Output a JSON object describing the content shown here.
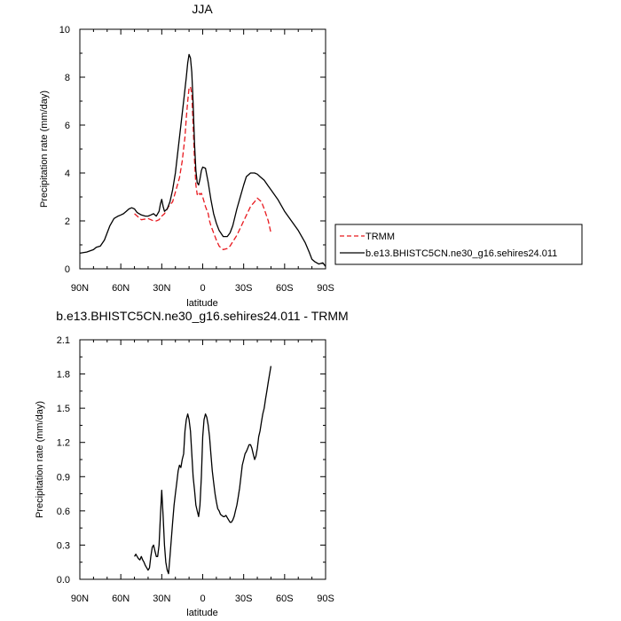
{
  "chart_data": [
    {
      "type": "line",
      "title": "JJA",
      "xlabel": "latitude",
      "ylabel": "Precipitation rate (mm/day)",
      "xlim": [
        90,
        -90
      ],
      "ylim": [
        0,
        10
      ],
      "x_ticks": [
        90,
        60,
        30,
        0,
        -30,
        -60,
        -90
      ],
      "x_tick_labels": [
        "90N",
        "60N",
        "30N",
        "0",
        "30S",
        "60S",
        "90S"
      ],
      "y_ticks": [
        0,
        2,
        4,
        6,
        8,
        10
      ],
      "y_tick_labels": [
        "0",
        "2",
        "4",
        "6",
        "8",
        "10"
      ],
      "legend_position": "right",
      "series": [
        {
          "name": "TRMM",
          "color": "#e8191f",
          "dash": "dashed",
          "x": [
            50,
            47,
            45,
            40,
            36,
            34,
            32,
            30,
            28,
            25,
            22,
            20,
            17,
            15,
            13,
            12,
            11,
            10,
            9,
            8,
            7,
            6,
            5,
            4,
            3,
            2,
            1,
            0,
            -2,
            -4,
            -5,
            -6,
            -8,
            -10,
            -12,
            -15,
            -18,
            -20,
            -25,
            -30,
            -35,
            -38,
            -40,
            -43,
            -45,
            -48,
            -50
          ],
          "y": [
            2.3,
            2.15,
            2.05,
            2.1,
            2.0,
            2.0,
            2.05,
            2.2,
            2.3,
            2.6,
            2.8,
            3.2,
            3.8,
            4.5,
            5.5,
            6.3,
            7.0,
            7.55,
            7.6,
            7.3,
            6.0,
            4.5,
            3.5,
            3.1,
            3.2,
            3.1,
            3.15,
            3.0,
            2.6,
            2.3,
            2.0,
            1.8,
            1.5,
            1.2,
            0.95,
            0.8,
            0.85,
            0.95,
            1.4,
            2.0,
            2.6,
            2.8,
            2.95,
            2.8,
            2.5,
            2.0,
            1.5
          ]
        },
        {
          "name": "b.e13.BHISTC5CN.ne30_g16.sehires24.011",
          "color": "#000000",
          "dash": "solid",
          "x": [
            90,
            85,
            80,
            78,
            75,
            72,
            70,
            68,
            65,
            62,
            60,
            58,
            56,
            54,
            52,
            50,
            48,
            45,
            42,
            40,
            38,
            36,
            35,
            34,
            32,
            31,
            30,
            29,
            28,
            26,
            24,
            22,
            20,
            18,
            16,
            14,
            12,
            11,
            10,
            9,
            8,
            7,
            6,
            5,
            4,
            3,
            2,
            1,
            0,
            -2,
            -4,
            -6,
            -8,
            -10,
            -12,
            -15,
            -18,
            -20,
            -22,
            -25,
            -28,
            -30,
            -32,
            -35,
            -38,
            -40,
            -42,
            -45,
            -48,
            -50,
            -55,
            -60,
            -65,
            -70,
            -75,
            -78,
            -80,
            -82,
            -85,
            -88,
            -90
          ],
          "y": [
            0.65,
            0.7,
            0.8,
            0.9,
            0.95,
            1.2,
            1.5,
            1.8,
            2.1,
            2.2,
            2.25,
            2.3,
            2.4,
            2.5,
            2.55,
            2.5,
            2.35,
            2.25,
            2.2,
            2.2,
            2.25,
            2.3,
            2.25,
            2.2,
            2.4,
            2.7,
            2.9,
            2.6,
            2.4,
            2.5,
            2.8,
            3.3,
            4.0,
            5.0,
            6.0,
            7.0,
            8.0,
            8.6,
            8.95,
            8.8,
            8.2,
            6.9,
            5.2,
            4.1,
            3.6,
            3.5,
            3.75,
            4.1,
            4.25,
            4.2,
            3.6,
            2.9,
            2.3,
            1.9,
            1.6,
            1.35,
            1.35,
            1.5,
            1.8,
            2.5,
            3.1,
            3.5,
            3.85,
            4.0,
            4.0,
            3.95,
            3.85,
            3.7,
            3.45,
            3.3,
            2.9,
            2.4,
            2.0,
            1.6,
            1.1,
            0.7,
            0.4,
            0.3,
            0.2,
            0.25,
            0.1
          ]
        }
      ]
    },
    {
      "type": "line",
      "title": "b.e13.BHISTC5CN.ne30_g16.sehires24.011 - TRMM",
      "xlabel": "latitude",
      "ylabel": "Precipitation rate (mm/day)",
      "xlim": [
        90,
        -90
      ],
      "ylim": [
        0,
        2.1
      ],
      "x_ticks": [
        90,
        60,
        30,
        0,
        -30,
        -60,
        -90
      ],
      "x_tick_labels": [
        "90N",
        "60N",
        "30N",
        "0",
        "30S",
        "60S",
        "90S"
      ],
      "y_ticks": [
        0,
        0.3,
        0.6,
        0.9,
        1.2,
        1.5,
        1.8,
        2.1
      ],
      "y_tick_labels": [
        "0.0",
        "0.3",
        "0.6",
        "0.9",
        "1.2",
        "1.5",
        "1.8",
        "2.1"
      ],
      "series": [
        {
          "color": "#000000",
          "dash": "solid",
          "x": [
            50,
            49,
            48,
            47,
            46,
            45,
            44,
            43,
            42,
            41,
            40,
            39,
            38,
            37,
            36,
            35,
            34,
            33,
            32,
            31,
            30,
            29,
            28,
            27,
            26,
            25,
            24,
            23,
            22,
            21,
            20,
            19,
            18,
            17,
            16,
            15,
            14,
            13,
            12,
            11,
            10,
            9,
            8,
            7,
            6,
            5,
            4,
            3,
            2,
            1,
            0,
            -1,
            -2,
            -3,
            -4,
            -5,
            -6,
            -7,
            -8,
            -9,
            -10,
            -11,
            -12,
            -13,
            -14,
            -15,
            -16,
            -17,
            -18,
            -19,
            -20,
            -21,
            -22,
            -23,
            -24,
            -25,
            -26,
            -27,
            -28,
            -29,
            -30,
            -31,
            -32,
            -33,
            -34,
            -35,
            -36,
            -37,
            -38,
            -39,
            -40,
            -41,
            -42,
            -43,
            -44,
            -45,
            -46,
            -47,
            -48,
            -49,
            -50
          ],
          "y": [
            0.2,
            0.22,
            0.2,
            0.18,
            0.17,
            0.2,
            0.17,
            0.15,
            0.12,
            0.1,
            0.08,
            0.1,
            0.2,
            0.28,
            0.3,
            0.25,
            0.2,
            0.2,
            0.3,
            0.55,
            0.78,
            0.55,
            0.3,
            0.15,
            0.08,
            0.05,
            0.2,
            0.35,
            0.5,
            0.65,
            0.75,
            0.85,
            0.95,
            1.0,
            0.98,
            1.05,
            1.1,
            1.3,
            1.4,
            1.45,
            1.4,
            1.3,
            1.1,
            0.9,
            0.78,
            0.65,
            0.6,
            0.55,
            0.65,
            0.9,
            1.25,
            1.4,
            1.45,
            1.42,
            1.35,
            1.25,
            1.1,
            0.95,
            0.85,
            0.75,
            0.68,
            0.62,
            0.6,
            0.57,
            0.56,
            0.55,
            0.55,
            0.56,
            0.54,
            0.52,
            0.5,
            0.5,
            0.52,
            0.55,
            0.6,
            0.65,
            0.72,
            0.8,
            0.9,
            1.0,
            1.05,
            1.1,
            1.12,
            1.15,
            1.18,
            1.18,
            1.15,
            1.1,
            1.05,
            1.08,
            1.15,
            1.25,
            1.3,
            1.38,
            1.45,
            1.5,
            1.58,
            1.65,
            1.73,
            1.8,
            1.87
          ]
        }
      ]
    }
  ]
}
